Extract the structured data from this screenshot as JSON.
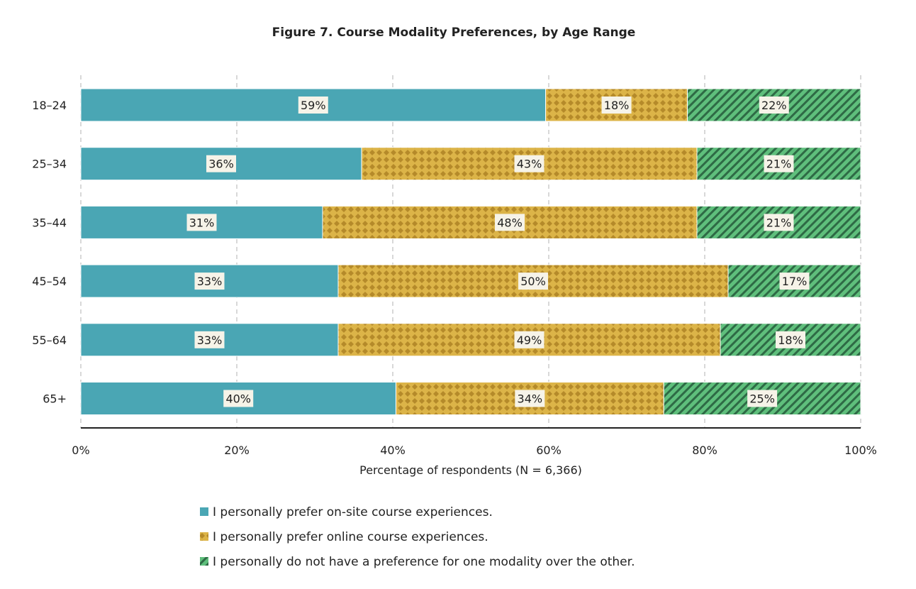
{
  "chart_data": {
    "type": "bar",
    "orientation": "horizontal",
    "stacked": true,
    "title": "Figure 7. Course Modality Preferences, by Age Range",
    "xlabel": "Percentage of respondents (N = 6,366)",
    "ylabel": "",
    "xlim": [
      0,
      100
    ],
    "x_ticks": [
      "0%",
      "20%",
      "40%",
      "60%",
      "80%",
      "100%"
    ],
    "grid": "vertical dashed",
    "legend_position": "bottom",
    "categories": [
      "18–24",
      "25–34",
      "35–44",
      "45–54",
      "55–64",
      "65+"
    ],
    "series": [
      {
        "name": "I personally prefer on-site course experiences.",
        "color": "#4aa6b4",
        "pattern": "solid",
        "values": [
          59,
          36,
          31,
          33,
          33,
          40
        ]
      },
      {
        "name": "I personally prefer online course experiences.",
        "color": "#d9ad3e",
        "pattern": "dots",
        "values": [
          18,
          43,
          48,
          50,
          49,
          34
        ]
      },
      {
        "name": "I personally do not have a preference for one modality over the other.",
        "color": "#5fbf7c",
        "pattern": "hatch",
        "values": [
          22,
          21,
          21,
          17,
          18,
          25
        ]
      }
    ]
  }
}
